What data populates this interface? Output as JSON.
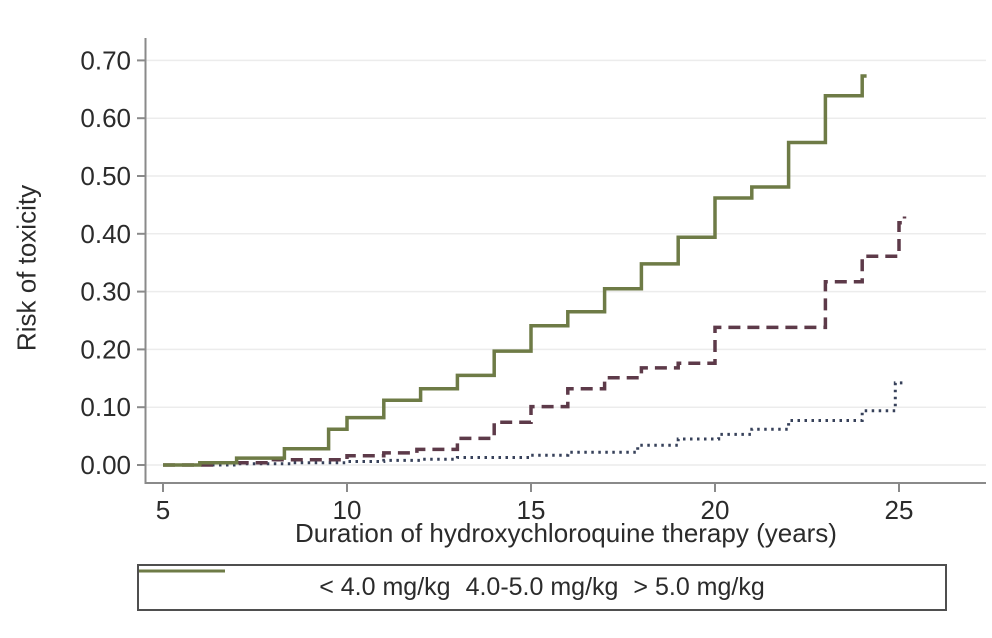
{
  "chart_data": {
    "type": "line",
    "subtype": "step-after",
    "title": "",
    "xlabel": "Duration of hydroxychloroquine therapy (years)",
    "ylabel": "Risk of toxicity",
    "xlim": [
      5,
      27.3
    ],
    "ylim": [
      0,
      0.73
    ],
    "x_tick_labels": [
      "5",
      "10",
      "15",
      "20",
      "25"
    ],
    "x_ticks": [
      5,
      10,
      15,
      20,
      25
    ],
    "y_tick_labels": [
      "0.00",
      "0.10",
      "0.20",
      "0.30",
      "0.40",
      "0.50",
      "0.60",
      "0.70"
    ],
    "y_ticks": [
      0.0,
      0.1,
      0.2,
      0.3,
      0.4,
      0.5,
      0.6,
      0.7
    ],
    "grid": "horizontal",
    "legend_position": "bottom",
    "series": [
      {
        "name": "< 4.0 mg/kg",
        "style": "dotted",
        "color": "#37415a",
        "points": [
          [
            5,
            0
          ],
          [
            7,
            0.002
          ],
          [
            8.5,
            0.004
          ],
          [
            10,
            0.006
          ],
          [
            11,
            0.008
          ],
          [
            12,
            0.01
          ],
          [
            13,
            0.013
          ],
          [
            15,
            0.017
          ],
          [
            16,
            0.022
          ],
          [
            17.9,
            0.034
          ],
          [
            19,
            0.045
          ],
          [
            20.1,
            0.053
          ],
          [
            21,
            0.062
          ],
          [
            22,
            0.077
          ],
          [
            24,
            0.094
          ],
          [
            24.9,
            0.142
          ],
          [
            25.1,
            0.148
          ]
        ]
      },
      {
        "name": "4.0-5.0 mg/kg",
        "style": "dashed",
        "color": "#5d3a49",
        "points": [
          [
            5,
            0
          ],
          [
            6.5,
            0.004
          ],
          [
            8,
            0.009
          ],
          [
            10,
            0.016
          ],
          [
            11,
            0.021
          ],
          [
            11.9,
            0.027
          ],
          [
            13,
            0.046
          ],
          [
            14,
            0.074
          ],
          [
            15,
            0.101
          ],
          [
            16,
            0.132
          ],
          [
            17,
            0.151
          ],
          [
            18,
            0.168
          ],
          [
            19,
            0.176
          ],
          [
            20,
            0.238
          ],
          [
            23,
            0.317
          ],
          [
            24,
            0.361
          ],
          [
            25,
            0.419
          ],
          [
            25.15,
            0.43
          ]
        ]
      },
      {
        "name": "> 5.0 mg/kg",
        "style": "solid",
        "color": "#6e7b46",
        "points": [
          [
            5,
            0
          ],
          [
            6,
            0.004
          ],
          [
            7,
            0.012
          ],
          [
            8.3,
            0.028
          ],
          [
            9.5,
            0.062
          ],
          [
            10,
            0.082
          ],
          [
            11,
            0.112
          ],
          [
            12,
            0.132
          ],
          [
            13,
            0.155
          ],
          [
            14,
            0.197
          ],
          [
            15,
            0.241
          ],
          [
            16,
            0.265
          ],
          [
            17,
            0.305
          ],
          [
            18,
            0.348
          ],
          [
            19,
            0.394
          ],
          [
            20,
            0.462
          ],
          [
            21,
            0.481
          ],
          [
            22,
            0.558
          ],
          [
            23,
            0.639
          ],
          [
            24,
            0.673
          ],
          [
            24.12,
            0.673
          ]
        ]
      }
    ]
  },
  "colors": {
    "background": "#ffffff",
    "axis": "#8a8a8a",
    "grid": "#ececec",
    "text": "#2b2b2b",
    "legend_border": "#4f4f4f"
  }
}
